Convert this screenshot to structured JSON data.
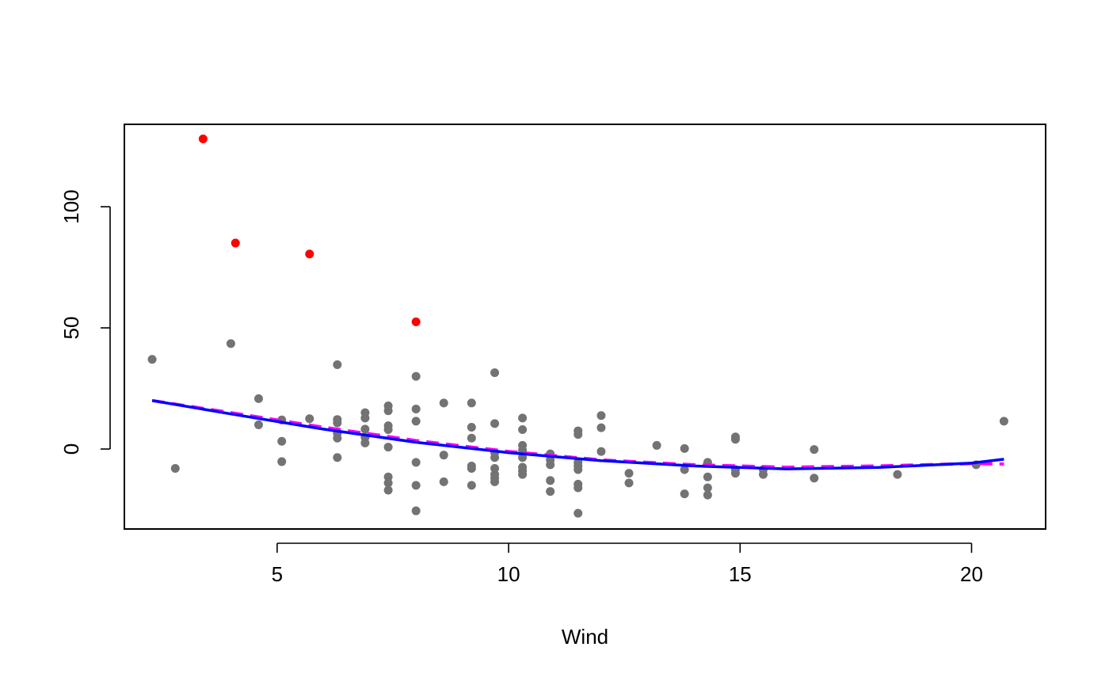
{
  "chart_data": {
    "type": "scatter",
    "title": "",
    "xlabel": "Wind",
    "ylabel": "",
    "xlim": [
      1.7,
      21.6
    ],
    "ylim": [
      -33,
      134
    ],
    "x_ticks": [
      5,
      10,
      15,
      20
    ],
    "y_ticks": [
      0,
      50,
      100
    ],
    "x_tick_labels": [
      "5",
      "10",
      "15",
      "20"
    ],
    "y_tick_labels": [
      "0",
      "50",
      "100"
    ],
    "grid": false,
    "legend": "none",
    "colors": {
      "points": "#737373",
      "outliers": "#ff0000",
      "fit_solid": "#0000ff",
      "fit_dashed": "#ff00ff",
      "frame": "#000000"
    },
    "series": [
      {
        "kind": "points",
        "color": "#737373",
        "points": [
          [
            2.3,
            37.0
          ],
          [
            2.8,
            -8.0
          ],
          [
            4.0,
            43.5
          ],
          [
            4.6,
            20.8
          ],
          [
            4.6,
            10.0
          ],
          [
            5.1,
            12.0
          ],
          [
            5.1,
            3.2
          ],
          [
            5.1,
            -5.2
          ],
          [
            5.7,
            12.5
          ],
          [
            6.3,
            34.8
          ],
          [
            6.3,
            12.2
          ],
          [
            6.3,
            10.8
          ],
          [
            6.3,
            6.5
          ],
          [
            6.3,
            4.5
          ],
          [
            6.3,
            -3.5
          ],
          [
            6.9,
            15.0
          ],
          [
            6.9,
            12.8
          ],
          [
            6.9,
            8.2
          ],
          [
            6.9,
            4.8
          ],
          [
            6.9,
            2.5
          ],
          [
            7.4,
            17.8
          ],
          [
            7.4,
            15.8
          ],
          [
            7.4,
            9.6
          ],
          [
            7.4,
            8.0
          ],
          [
            7.4,
            0.8
          ],
          [
            7.4,
            -11.5
          ],
          [
            7.4,
            -14.0
          ],
          [
            7.4,
            -17.0
          ],
          [
            8.0,
            30.0
          ],
          [
            8.0,
            16.5
          ],
          [
            8.0,
            11.5
          ],
          [
            8.0,
            -5.5
          ],
          [
            8.0,
            -15.0
          ],
          [
            8.0,
            -25.5
          ],
          [
            8.6,
            19.0
          ],
          [
            8.6,
            -2.5
          ],
          [
            8.6,
            -13.5
          ],
          [
            9.2,
            19.0
          ],
          [
            9.2,
            9.0
          ],
          [
            9.2,
            4.5
          ],
          [
            9.2,
            -7.0
          ],
          [
            9.2,
            -8.0
          ],
          [
            9.2,
            -15.0
          ],
          [
            9.7,
            31.5
          ],
          [
            9.7,
            10.5
          ],
          [
            9.7,
            -1.5
          ],
          [
            9.7,
            -3.5
          ],
          [
            9.7,
            -8.0
          ],
          [
            9.7,
            -10.5
          ],
          [
            9.7,
            -12.0
          ],
          [
            9.7,
            -13.5
          ],
          [
            10.3,
            12.8
          ],
          [
            10.3,
            8.0
          ],
          [
            10.3,
            1.5
          ],
          [
            10.3,
            -0.5
          ],
          [
            10.3,
            -3.5
          ],
          [
            10.3,
            -7.5
          ],
          [
            10.3,
            -9.0
          ],
          [
            10.3,
            -10.5
          ],
          [
            10.9,
            -2.0
          ],
          [
            10.9,
            -4.5
          ],
          [
            10.9,
            -6.5
          ],
          [
            10.9,
            -13.0
          ],
          [
            10.9,
            -17.5
          ],
          [
            11.5,
            7.5
          ],
          [
            11.5,
            6.0
          ],
          [
            11.5,
            -5.5
          ],
          [
            11.5,
            -7.0
          ],
          [
            11.5,
            -8.5
          ],
          [
            11.5,
            -14.5
          ],
          [
            11.5,
            -16.0
          ],
          [
            11.5,
            -26.5
          ],
          [
            12.0,
            13.8
          ],
          [
            12.0,
            8.8
          ],
          [
            12.0,
            -1.0
          ],
          [
            12.6,
            -10.0
          ],
          [
            12.6,
            -14.0
          ],
          [
            13.2,
            1.5
          ],
          [
            13.8,
            0.2
          ],
          [
            13.8,
            -8.5
          ],
          [
            13.8,
            -18.5
          ],
          [
            14.3,
            -5.5
          ],
          [
            14.3,
            -11.5
          ],
          [
            14.3,
            -16.0
          ],
          [
            14.3,
            -19.0
          ],
          [
            14.9,
            5.0
          ],
          [
            14.9,
            4.0
          ],
          [
            14.9,
            -8.5
          ],
          [
            14.9,
            -10.0
          ],
          [
            15.5,
            -8.5
          ],
          [
            15.5,
            -10.5
          ],
          [
            16.6,
            -0.2
          ],
          [
            16.6,
            -12.0
          ],
          [
            18.4,
            -10.5
          ],
          [
            20.1,
            -6.5
          ],
          [
            20.7,
            11.5
          ]
        ]
      },
      {
        "kind": "points",
        "color": "#ff0000",
        "points": [
          [
            3.4,
            128.0
          ],
          [
            4.1,
            85.0
          ],
          [
            5.7,
            80.5
          ],
          [
            8.0,
            52.5
          ]
        ]
      },
      {
        "kind": "line",
        "style": "solid",
        "color": "#0000ff",
        "points": [
          [
            2.3,
            20.0
          ],
          [
            4.0,
            14.5
          ],
          [
            6.0,
            8.2
          ],
          [
            8.0,
            2.8
          ],
          [
            10.0,
            -1.5
          ],
          [
            12.0,
            -4.8
          ],
          [
            14.0,
            -7.0
          ],
          [
            16.0,
            -8.2
          ],
          [
            18.0,
            -7.6
          ],
          [
            20.0,
            -5.8
          ],
          [
            20.7,
            -4.2
          ]
        ]
      },
      {
        "kind": "line",
        "style": "dashed",
        "color": "#ff00ff",
        "points": [
          [
            2.3,
            20.0
          ],
          [
            4.0,
            15.0
          ],
          [
            6.0,
            9.0
          ],
          [
            8.0,
            3.5
          ],
          [
            10.0,
            -1.0
          ],
          [
            12.0,
            -4.5
          ],
          [
            14.0,
            -6.5
          ],
          [
            16.0,
            -7.5
          ],
          [
            18.0,
            -7.0
          ],
          [
            20.0,
            -6.0
          ],
          [
            20.7,
            -6.2
          ]
        ]
      }
    ]
  }
}
